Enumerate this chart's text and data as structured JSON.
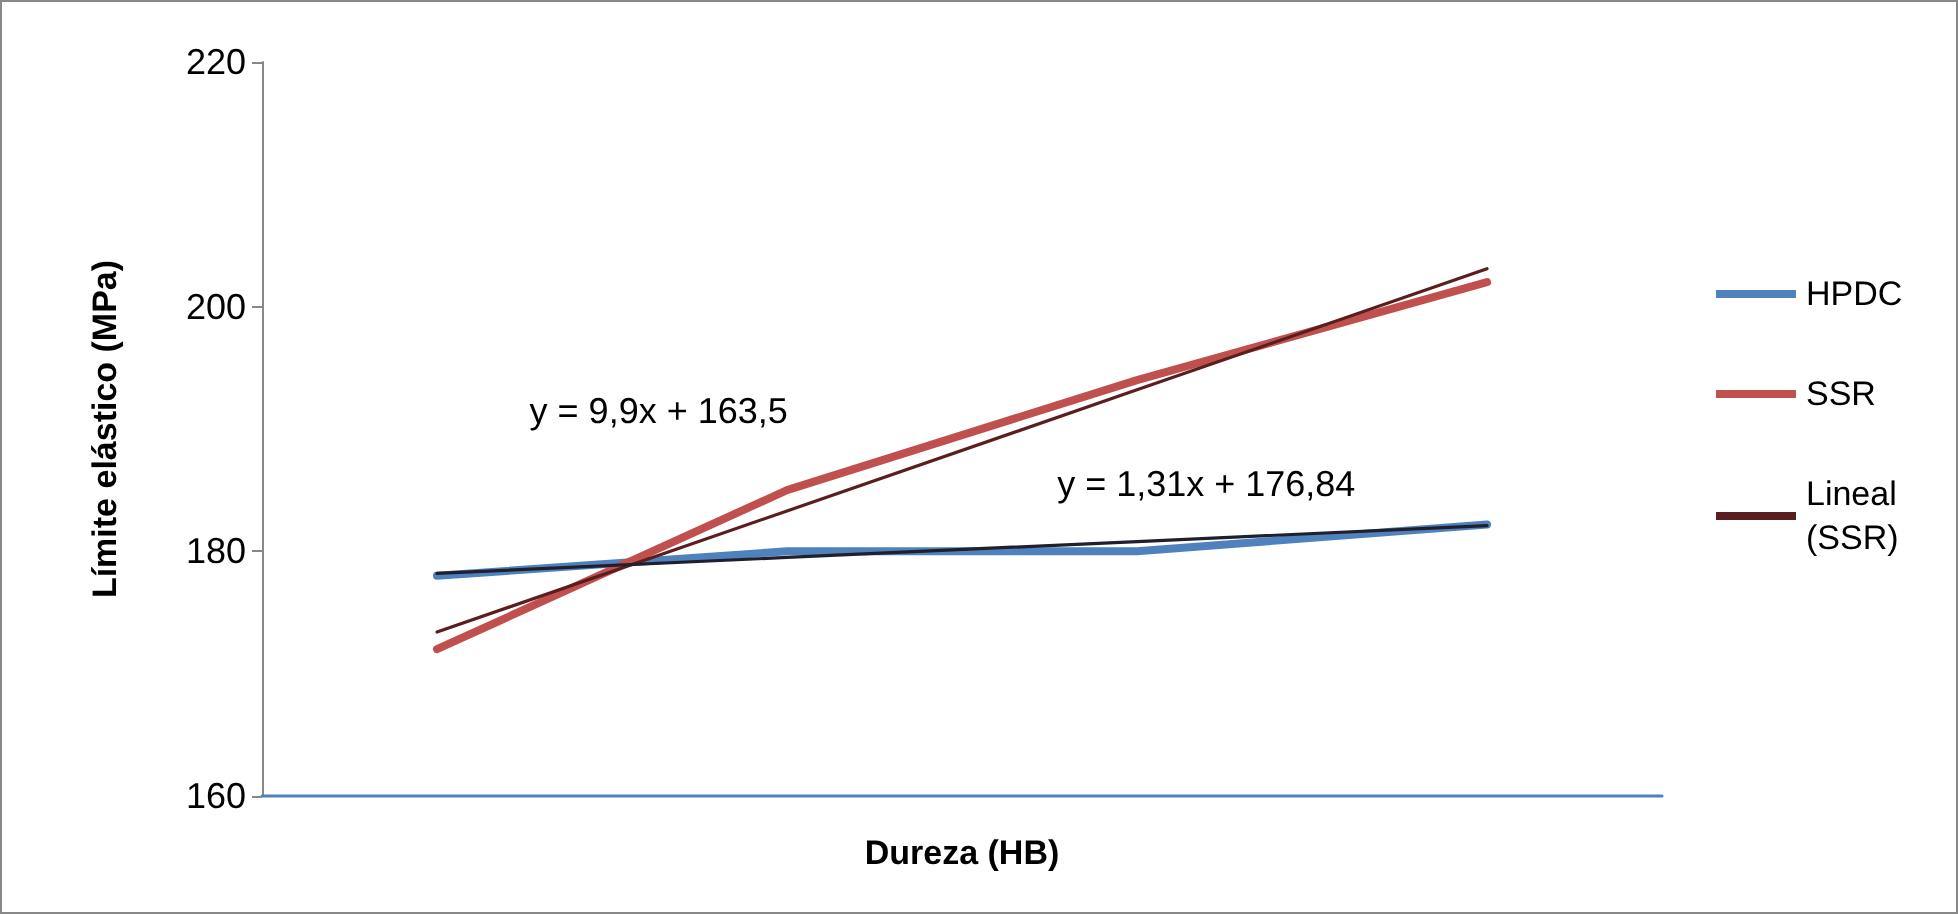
{
  "chart_data": {
    "type": "line",
    "xlabel": "Dureza (HB)",
    "ylabel": "Límite elástico (MPa)",
    "categories": [
      null,
      null,
      null,
      null
    ],
    "series": [
      {
        "name": "HPDC",
        "color": "#4f81bd",
        "values": [
          178,
          180,
          180,
          182.2
        ]
      },
      {
        "name": "SSR",
        "color": "#c0504d",
        "values": [
          172,
          185,
          194,
          202
        ]
      },
      {
        "name": "Lineal (SSR)",
        "color": "#5a1e1e",
        "values": [
          173.4,
          183.3,
          193.2,
          203.1
        ]
      },
      {
        "color": "#1f1f2e",
        "values": [
          178.2,
          179.5,
          180.8,
          182.1
        ]
      }
    ],
    "ylim": [
      160,
      220
    ],
    "yticks": [
      160,
      180,
      200,
      220
    ],
    "grid": false,
    "legend": "right",
    "marker": "none",
    "line_style": "solid",
    "tick_labels": "y",
    "annotations": [
      "y = 9,9x + 163,5",
      "y = 1,31x + 176,84"
    ]
  }
}
